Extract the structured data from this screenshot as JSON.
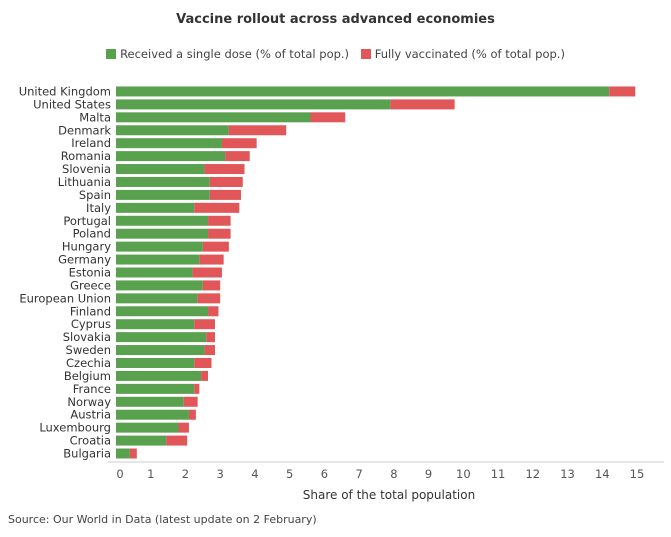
{
  "chart_data": {
    "type": "bar",
    "orientation": "horizontal",
    "stacked": true,
    "title": "Vaccine rollout across advanced economies",
    "xlabel": "Share of the total population",
    "ylabel": "",
    "xlim": [
      0,
      15.5
    ],
    "xticks": [
      0,
      1,
      2,
      3,
      4,
      5,
      6,
      7,
      8,
      9,
      10,
      11,
      12,
      13,
      14,
      15
    ],
    "legend_position": "top",
    "grid": false,
    "categories": [
      "United Kingdom",
      "United States",
      "Malta",
      "Denmark",
      "Ireland",
      "Romania",
      "Slovenia",
      "Lithuania",
      "Spain",
      "Italy",
      "Portugal",
      "Poland",
      "Hungary",
      "Germany",
      "Estonia",
      "Greece",
      "European Union",
      "Finland",
      "Cyprus",
      "Slovakia",
      "Sweden",
      "Czechia",
      "Belgium",
      "France",
      "Norway",
      "Austria",
      "Luxembourg",
      "Croatia",
      "Bulgaria"
    ],
    "series": [
      {
        "name": "Received a single dose (% of total pop.)",
        "color": "#59a14f",
        "values": [
          14.2,
          7.9,
          5.6,
          3.25,
          3.05,
          3.15,
          2.55,
          2.7,
          2.7,
          2.25,
          2.65,
          2.65,
          2.5,
          2.4,
          2.2,
          2.5,
          2.35,
          2.65,
          2.25,
          2.6,
          2.55,
          2.25,
          2.45,
          2.25,
          1.95,
          2.1,
          1.8,
          1.45,
          0.4
        ]
      },
      {
        "name": "Fully vaccinated (% of total pop.)",
        "color": "#e15759",
        "values": [
          0.75,
          1.85,
          1.0,
          1.65,
          1.0,
          0.7,
          1.15,
          0.95,
          0.9,
          1.3,
          0.65,
          0.65,
          0.75,
          0.7,
          0.85,
          0.5,
          0.65,
          0.3,
          0.6,
          0.25,
          0.3,
          0.5,
          0.2,
          0.15,
          0.4,
          0.2,
          0.3,
          0.6,
          0.2
        ]
      }
    ]
  },
  "source_note": "Source: Our World in Data (latest update on 2 February)"
}
